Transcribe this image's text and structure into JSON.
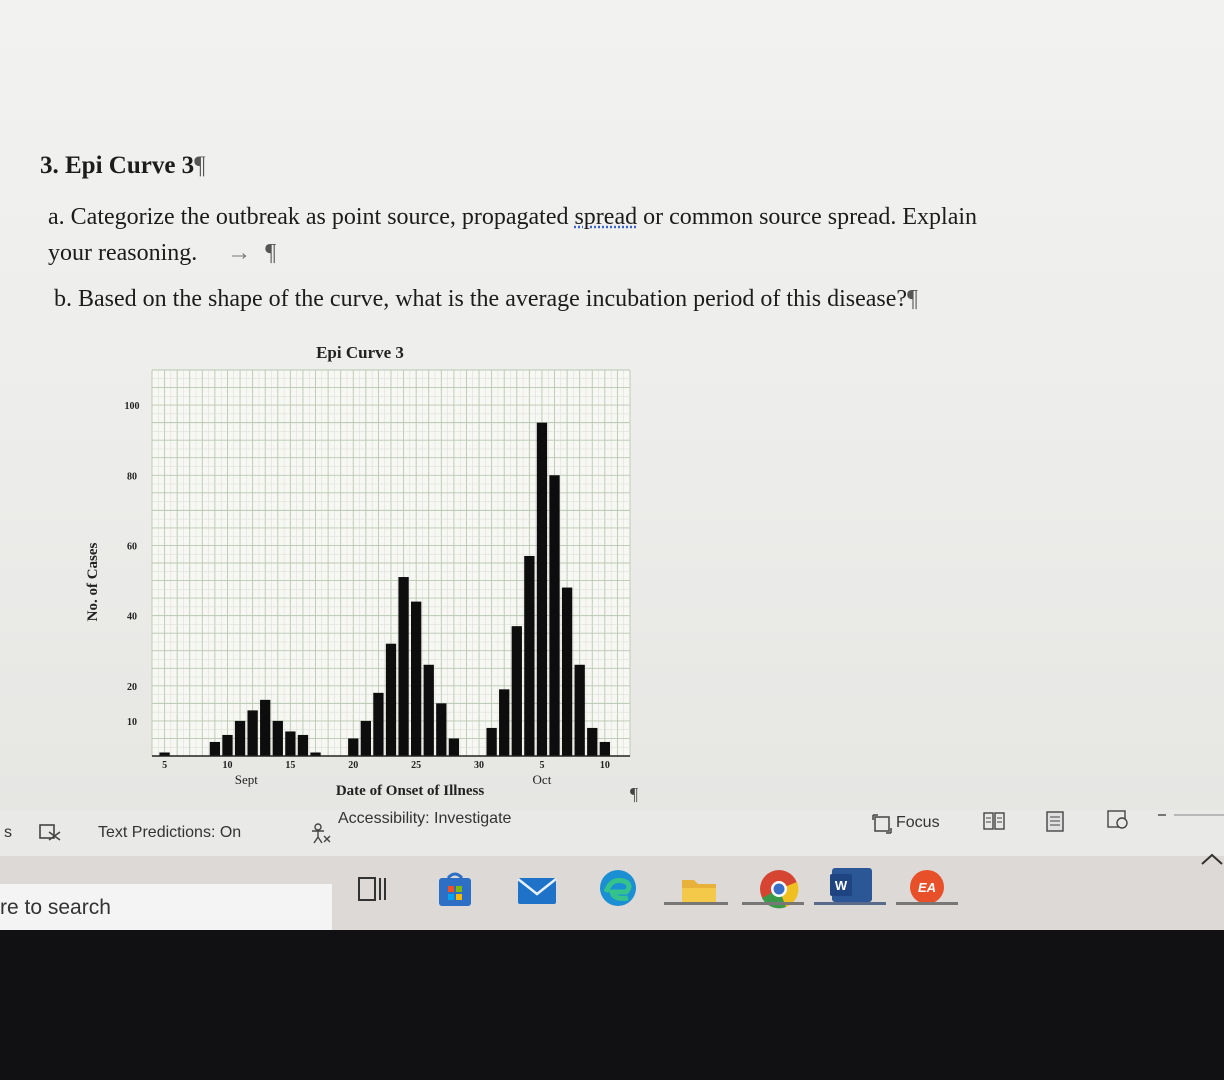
{
  "document": {
    "heading": "3. Epi Curve 3",
    "question_a_line1_pre": "a. Categorize the outbreak as point source, propagated ",
    "question_a_spell": "spread",
    "question_a_line1_post": " or common source spread. Explain",
    "question_a_line2": "your reasoning.",
    "question_b": "b. Based on the shape of the curve, what is the average incubation period of this disease?",
    "pilcrow": "¶",
    "tab_arrow": "→"
  },
  "chart_data": {
    "type": "bar",
    "title": "Epi Curve 3",
    "xlabel": "Date of Onset of Illness",
    "ylabel": "No. of Cases",
    "y_tick_labels": [
      "10",
      "20",
      "40",
      "60",
      "80",
      "100"
    ],
    "x_tick_labels": [
      "5",
      "10",
      "15",
      "20",
      "25",
      "30",
      "5",
      "10"
    ],
    "month_labels": [
      "Sept",
      "Oct"
    ],
    "ylim": [
      0,
      110
    ],
    "grid": true,
    "days": [
      5,
      6,
      7,
      8,
      9,
      10,
      11,
      12,
      13,
      14,
      15,
      16,
      17,
      18,
      19,
      20,
      21,
      22,
      23,
      24,
      25,
      26,
      27,
      28,
      29,
      30,
      31,
      32,
      33,
      34,
      35,
      36,
      37,
      38,
      39,
      40
    ],
    "values": [
      1,
      0,
      0,
      0,
      4,
      6,
      10,
      13,
      16,
      10,
      7,
      6,
      1,
      0,
      0,
      5,
      10,
      18,
      32,
      51,
      44,
      26,
      15,
      5,
      0,
      0,
      8,
      19,
      37,
      57,
      95,
      80,
      48,
      26,
      8,
      4
    ]
  },
  "statusbar": {
    "text_predictions": "Text Predictions: On",
    "accessibility": "Accessibility: Investigate",
    "focus": "Focus"
  },
  "taskbar": {
    "search_text": "re to search",
    "apps": [
      "task-view",
      "store",
      "mail",
      "edge",
      "file-explorer",
      "chrome",
      "word",
      "ea"
    ],
    "colors": {
      "mail": "#1e73c8",
      "edge": "#1b8fd4",
      "files": "#e8b23a",
      "chrome": "#d64532",
      "word": "#2b5797",
      "ea": "#e8502a"
    }
  }
}
